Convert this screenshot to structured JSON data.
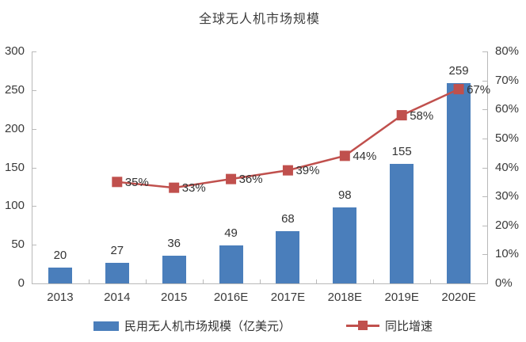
{
  "chart_data": {
    "type": "bar+line",
    "title": "全球无人机市场规模",
    "categories": [
      "2013",
      "2014",
      "2015",
      "2016E",
      "2017E",
      "2018E",
      "2019E",
      "2020E"
    ],
    "series": [
      {
        "name": "民用无人机市场规模（亿美元）",
        "type": "bar",
        "axis": "left",
        "color": "#4a7ebb",
        "values": [
          20,
          27,
          36,
          49,
          68,
          98,
          155,
          259
        ]
      },
      {
        "name": "同比增速",
        "type": "line",
        "axis": "right",
        "color": "#c0504d",
        "values": [
          null,
          35,
          33,
          36,
          39,
          44,
          58,
          67
        ],
        "labels": [
          "",
          "35%",
          "33%",
          "36%",
          "39%",
          "44%",
          "58%",
          "67%"
        ]
      }
    ],
    "left_axis": {
      "min": 0,
      "max": 300,
      "step": 50,
      "ticks": [
        "0",
        "50",
        "100",
        "150",
        "200",
        "250",
        "300"
      ]
    },
    "right_axis": {
      "min": 0,
      "max": 80,
      "step": 10,
      "ticks": [
        "0%",
        "10%",
        "20%",
        "30%",
        "40%",
        "50%",
        "60%",
        "70%",
        "80%"
      ]
    },
    "grid": false,
    "legend_position": "bottom"
  },
  "legend": {
    "bar_label": "民用无人机市场规模（亿美元）",
    "line_label": "同比增速"
  },
  "colors": {
    "bar": "#4a7ebb",
    "line": "#c0504d",
    "axis": "#b9b9b9",
    "text": "#333333"
  }
}
